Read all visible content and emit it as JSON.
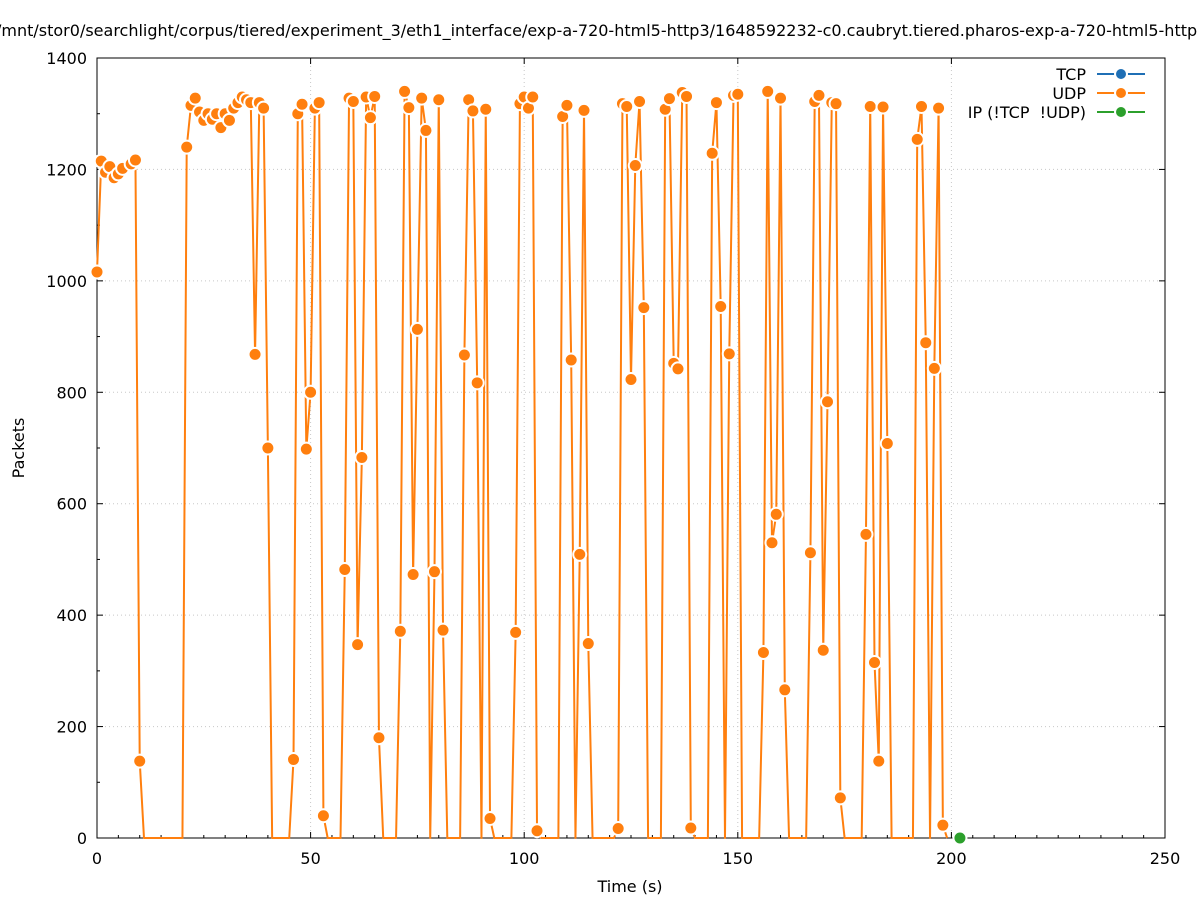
{
  "chart_data": {
    "type": "line",
    "title": "/mnt/stor0/searchlight/corpus/tiered/experiment_3/eth1_interface/exp-a-720-html5-http3/1648592232-c0.caubryt.tiered.pharos-exp-a-720-html5-http3.p",
    "xlabel": "Time (s)",
    "ylabel": "Packets",
    "xlim": [
      0,
      250
    ],
    "ylim": [
      0,
      1400
    ],
    "xticks": [
      0,
      50,
      100,
      150,
      200,
      250
    ],
    "yticks": [
      0,
      200,
      400,
      600,
      800,
      1000,
      1200,
      1400
    ],
    "grid": true,
    "legend_position": "top-right",
    "series": [
      {
        "name": "TCP",
        "color": "#1f6fb5",
        "points": []
      },
      {
        "name": "UDP",
        "color": "#ff7f0e",
        "points": [
          [
            0,
            1016
          ],
          [
            1,
            1215
          ],
          [
            2,
            1195
          ],
          [
            3,
            1205
          ],
          [
            4,
            1185
          ],
          [
            5,
            1192
          ],
          [
            6,
            1202
          ],
          [
            8,
            1210
          ],
          [
            9,
            1217
          ],
          [
            10,
            138
          ],
          [
            11,
            0
          ],
          [
            20,
            0
          ],
          [
            21,
            1240
          ],
          [
            22,
            1315
          ],
          [
            23,
            1328
          ],
          [
            24,
            1303
          ],
          [
            25,
            1288
          ],
          [
            26,
            1300
          ],
          [
            27,
            1290
          ],
          [
            28,
            1300
          ],
          [
            29,
            1275
          ],
          [
            30,
            1300
          ],
          [
            31,
            1288
          ],
          [
            32,
            1310
          ],
          [
            33,
            1320
          ],
          [
            34,
            1330
          ],
          [
            35,
            1325
          ],
          [
            36,
            1320
          ],
          [
            37,
            868
          ],
          [
            38,
            1320
          ],
          [
            39,
            1310
          ],
          [
            40,
            700
          ],
          [
            41,
            0
          ],
          [
            45,
            0
          ],
          [
            46,
            141
          ],
          [
            47,
            1300
          ],
          [
            48,
            1317
          ],
          [
            49,
            698
          ],
          [
            50,
            800
          ],
          [
            51,
            1310
          ],
          [
            52,
            1320
          ],
          [
            53,
            40
          ],
          [
            54,
            0
          ],
          [
            57,
            0
          ],
          [
            58,
            482
          ],
          [
            59,
            1328
          ],
          [
            60,
            1322
          ],
          [
            61,
            347
          ],
          [
            62,
            683
          ],
          [
            63,
            1330
          ],
          [
            64,
            1293
          ],
          [
            65,
            1331
          ],
          [
            66,
            180
          ],
          [
            67,
            0
          ],
          [
            70,
            0
          ],
          [
            71,
            371
          ],
          [
            72,
            1340
          ],
          [
            73,
            1311
          ],
          [
            74,
            473
          ],
          [
            75,
            913
          ],
          [
            76,
            1328
          ],
          [
            77,
            1270
          ],
          [
            78,
            0
          ],
          [
            79,
            478
          ],
          [
            80,
            1325
          ],
          [
            81,
            373
          ],
          [
            82,
            0
          ],
          [
            85,
            0
          ],
          [
            86,
            867
          ],
          [
            87,
            1325
          ],
          [
            88,
            1305
          ],
          [
            89,
            817
          ],
          [
            90,
            0
          ],
          [
            91,
            1308
          ],
          [
            92,
            35
          ],
          [
            93,
            0
          ],
          [
            97,
            0
          ],
          [
            98,
            369
          ],
          [
            99,
            1318
          ],
          [
            100,
            1330
          ],
          [
            101,
            1310
          ],
          [
            102,
            1330
          ],
          [
            103,
            13
          ],
          [
            104,
            0
          ],
          [
            108,
            0
          ],
          [
            109,
            1295
          ],
          [
            110,
            1315
          ],
          [
            111,
            858
          ],
          [
            112,
            0
          ],
          [
            113,
            509
          ],
          [
            114,
            1306
          ],
          [
            115,
            349
          ],
          [
            116,
            0
          ],
          [
            121,
            0
          ],
          [
            122,
            17
          ],
          [
            123,
            1318
          ],
          [
            124,
            1313
          ],
          [
            125,
            823
          ],
          [
            126,
            1207
          ],
          [
            127,
            1322
          ],
          [
            128,
            952
          ],
          [
            129,
            0
          ],
          [
            132,
            0
          ],
          [
            133,
            1308
          ],
          [
            134,
            1327
          ],
          [
            135,
            852
          ],
          [
            136,
            842
          ],
          [
            137,
            1338
          ],
          [
            138,
            1331
          ],
          [
            139,
            18
          ],
          [
            140,
            0
          ],
          [
            143,
            0
          ],
          [
            144,
            1229
          ],
          [
            145,
            1320
          ],
          [
            146,
            954
          ],
          [
            147,
            0
          ],
          [
            148,
            869
          ],
          [
            149,
            1333
          ],
          [
            150,
            1335
          ],
          [
            151,
            0
          ],
          [
            155,
            0
          ],
          [
            156,
            333
          ],
          [
            157,
            1340
          ],
          [
            158,
            530
          ],
          [
            159,
            581
          ],
          [
            160,
            1328
          ],
          [
            161,
            266
          ],
          [
            162,
            0
          ],
          [
            166,
            0
          ],
          [
            167,
            512
          ],
          [
            168,
            1322
          ],
          [
            169,
            1333
          ],
          [
            170,
            337
          ],
          [
            171,
            783
          ],
          [
            172,
            1320
          ],
          [
            173,
            1318
          ],
          [
            174,
            72
          ],
          [
            175,
            0
          ],
          [
            179,
            0
          ],
          [
            180,
            545
          ],
          [
            181,
            1313
          ],
          [
            182,
            315
          ],
          [
            183,
            138
          ],
          [
            184,
            1312
          ],
          [
            185,
            708
          ],
          [
            186,
            0
          ],
          [
            191,
            0
          ],
          [
            192,
            1254
          ],
          [
            193,
            1313
          ],
          [
            194,
            889
          ],
          [
            195,
            0
          ],
          [
            196,
            843
          ],
          [
            197,
            1310
          ],
          [
            198,
            23
          ],
          [
            199,
            0
          ]
        ]
      },
      {
        "name": "IP (!TCP  !UDP)",
        "color": "#2ca02c",
        "points": [
          [
            202,
            0
          ]
        ]
      }
    ]
  }
}
